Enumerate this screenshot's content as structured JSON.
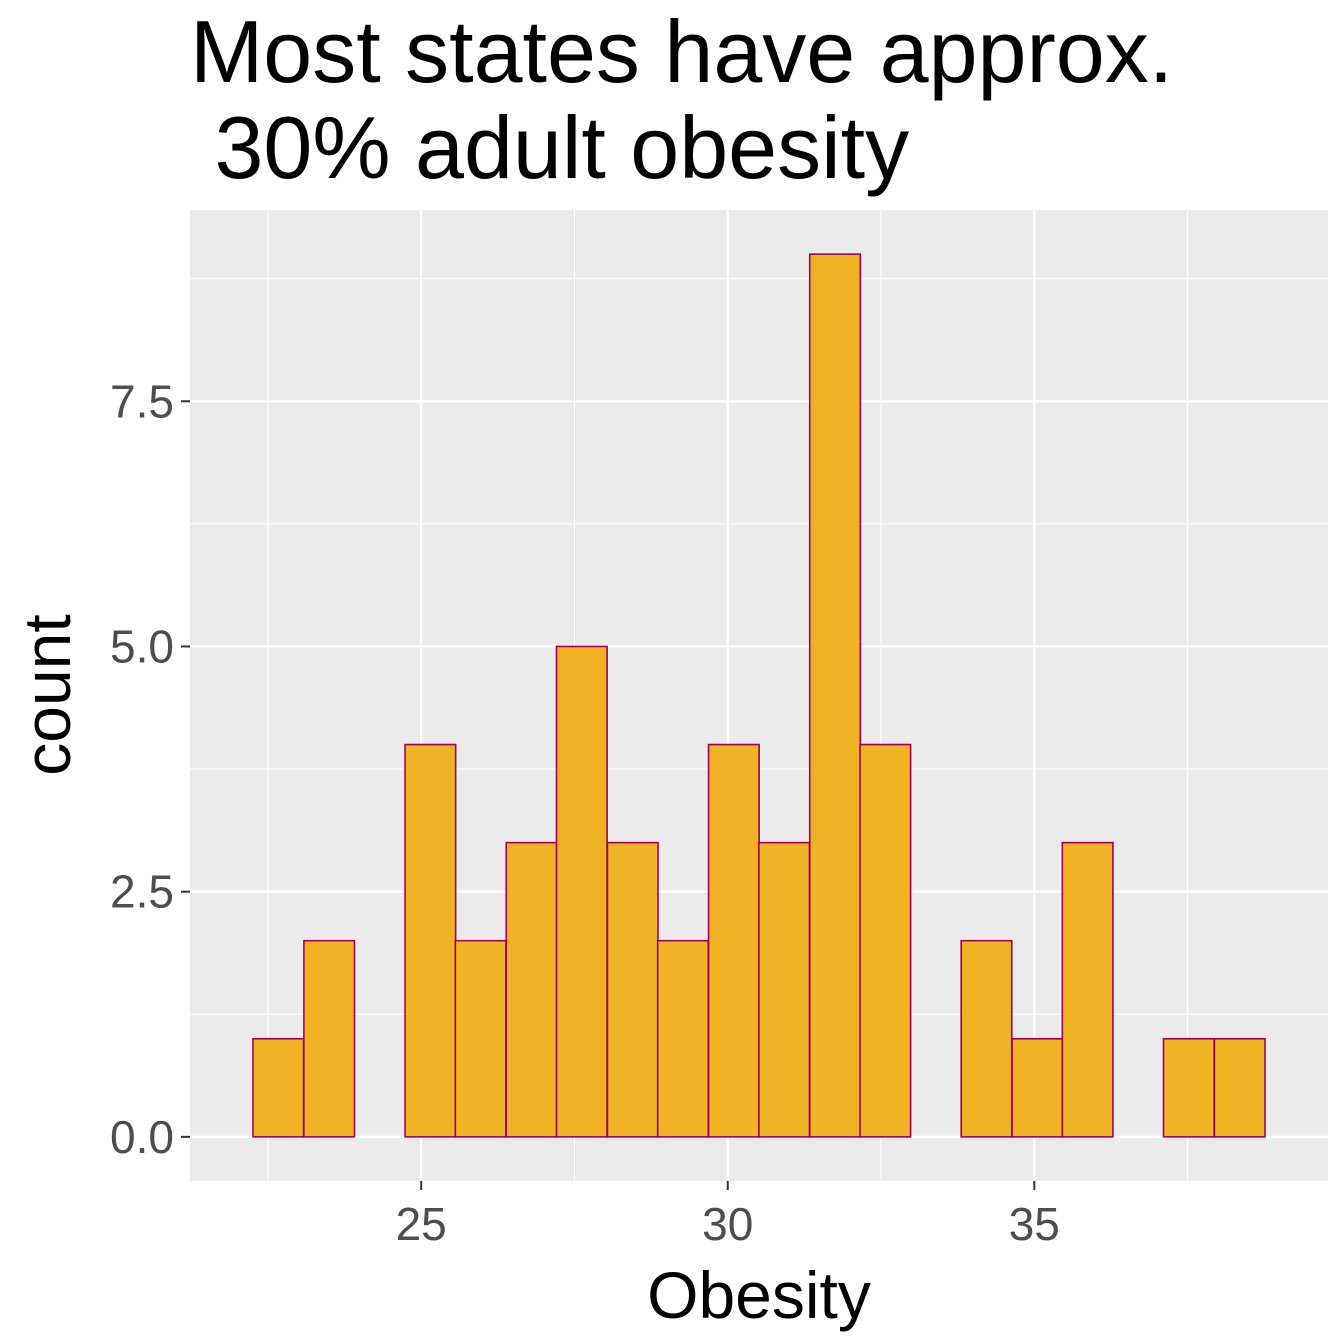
{
  "chart_data": {
    "type": "bar",
    "title_lines": [
      "Most states have approx.",
      " 30% adult obesity"
    ],
    "xlabel": "Obesity",
    "ylabel": "count",
    "bin_width": 0.825,
    "bins": [
      {
        "x": 22.67,
        "count": 1
      },
      {
        "x": 23.5,
        "count": 2
      },
      {
        "x": 24.32,
        "count": 0
      },
      {
        "x": 25.15,
        "count": 4
      },
      {
        "x": 25.97,
        "count": 2
      },
      {
        "x": 26.8,
        "count": 3
      },
      {
        "x": 27.62,
        "count": 5
      },
      {
        "x": 28.45,
        "count": 3
      },
      {
        "x": 29.27,
        "count": 2
      },
      {
        "x": 30.1,
        "count": 4
      },
      {
        "x": 30.92,
        "count": 3
      },
      {
        "x": 31.75,
        "count": 9
      },
      {
        "x": 32.57,
        "count": 4
      },
      {
        "x": 33.4,
        "count": 0
      },
      {
        "x": 34.22,
        "count": 2
      },
      {
        "x": 35.05,
        "count": 1
      },
      {
        "x": 35.87,
        "count": 3
      },
      {
        "x": 36.7,
        "count": 0
      },
      {
        "x": 37.52,
        "count": 1
      },
      {
        "x": 38.35,
        "count": 1
      }
    ],
    "xlim": [
      21.23,
      39.79
    ],
    "ylim": [
      -0.45,
      9.45
    ],
    "x_ticks": [
      25,
      30,
      35
    ],
    "x_tick_labels": [
      "25",
      "30",
      "35"
    ],
    "y_ticks": [
      0,
      2.5,
      5,
      7.5
    ],
    "y_tick_labels": [
      "0.0",
      "2.5",
      "5.0",
      "7.5"
    ],
    "grid": true,
    "fill_color": "#F0B323",
    "edge_color": "#A0005A",
    "panel_color": "#EBEBEB",
    "grid_color": "#FFFFFF"
  }
}
